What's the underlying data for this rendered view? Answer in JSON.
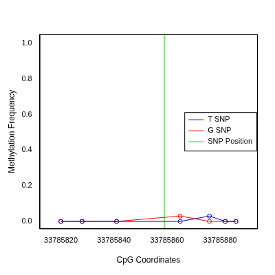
{
  "chart_data": {
    "type": "line",
    "x_label": "CpG Coordinates",
    "y_label": "Methylation Frequency",
    "x": [
      33785820,
      33785828,
      33785841,
      33785865,
      33785876,
      33785882,
      33785886
    ],
    "series": [
      {
        "name": "T SNP",
        "color": "#0000cc",
        "marker": "circle",
        "values": [
          0,
          0,
          0,
          0,
          0.03,
          0,
          0
        ]
      },
      {
        "name": "G SNP",
        "color": "#ff0000",
        "marker": "circle",
        "values": [
          0,
          0,
          0,
          0.03,
          0,
          0,
          0
        ]
      }
    ],
    "snp_position": {
      "name": "SNP Position",
      "color": "#00cc00",
      "x": 33785859
    },
    "xlim": [
      33785812,
      33785894
    ],
    "ylim": [
      -0.04,
      1.05
    ],
    "xticks": [
      33785820,
      33785840,
      33785860,
      33785880
    ],
    "yticks": [
      {
        "value": 0,
        "label": "0.0"
      },
      0.2,
      0.4,
      0.6,
      0.8,
      {
        "value": 1,
        "label": "1.0"
      }
    ],
    "grid": false,
    "legend": "right"
  }
}
